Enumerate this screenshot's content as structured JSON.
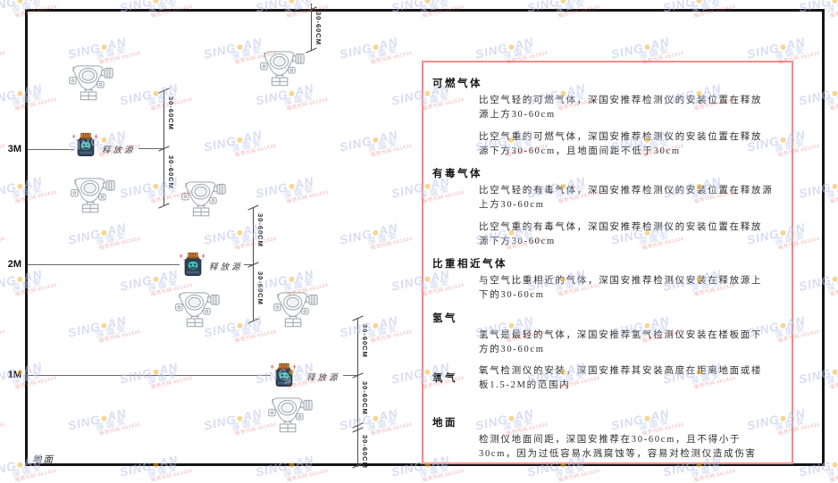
{
  "diagram": {
    "levels": [
      {
        "label": "3M"
      },
      {
        "label": "2M"
      },
      {
        "label": "1M"
      }
    ],
    "ground_label": "地面",
    "release_source_label": "释放源",
    "dim_label": "30-60CM"
  },
  "panel": {
    "sections": [
      {
        "heading": "可燃气体",
        "paragraphs": [
          "比空气轻的可燃气体，深国安推荐检测仪的安装位置在释放源上方30-60cm",
          "比空气重的可燃气体，深国安推荐检测仪的安装位置在释放源下方30-60cm，且地面间距不低于30cm"
        ]
      },
      {
        "heading": "有毒气体",
        "paragraphs": [
          "比空气轻的有毒气体，深国安推荐检测仪的安装位置在释放源上方30-60cm",
          "比空气重的有毒气体，深国安推荐检测仪的安装位置在释放源下方30-60cm"
        ]
      },
      {
        "heading": "比重相近气体",
        "paragraphs": [
          "与空气比重相近的气体，深国安推荐检测仪安装在释放源上下的30-60cm"
        ]
      },
      {
        "heading": "氢气",
        "paragraphs": [
          "氢气是最轻的气体，深国安推荐氢气检测仪安装在楼板面下方的30-60cm"
        ]
      },
      {
        "heading": "氧气",
        "paragraphs": [
          "氧气检测仪的安装，深国安推荐其安装高度在距离地面或楼板1.5-2M的范围内"
        ]
      },
      {
        "heading": "地面",
        "paragraphs": [
          "检测仪地面间距，深国安推荐在30-60cm，且不得小于30cm，因为过低容易水溅腐蚀等，容易对检测仪造成伤害"
        ]
      }
    ]
  },
  "watermark": {
    "brand_left": "SING",
    "brand_right": "AN",
    "company_cn": "深国安",
    "code_text": "服务代码 661434"
  },
  "colors": {
    "panel_border": "#f28b8b",
    "watermark_blue": "#b7c1ea",
    "watermark_dot": "#f2b63c",
    "jar_body": "#2e4156",
    "jar_face": "#43c4b0",
    "jar_cap": "#c97a33"
  }
}
